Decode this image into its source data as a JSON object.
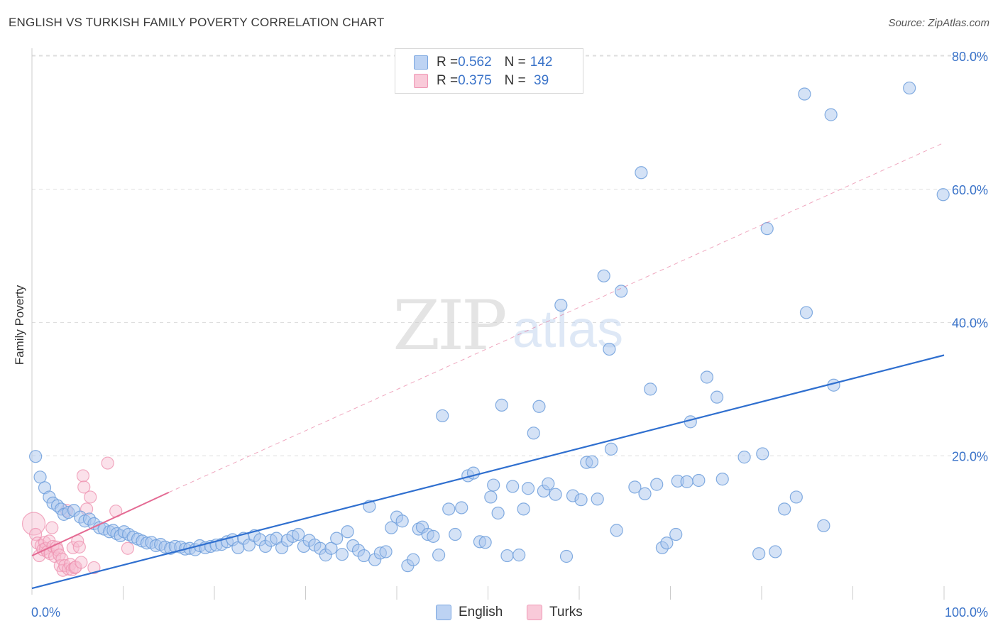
{
  "header": {
    "title": "ENGLISH VS TURKISH FAMILY POVERTY CORRELATION CHART",
    "source": "Source: ZipAtlas.com"
  },
  "watermark": {
    "zip": "ZIP",
    "atlas": "atlas"
  },
  "legend_top": {
    "rows": [
      {
        "r_label": "R = ",
        "r_value": "0.562",
        "n_label": "N = ",
        "n_value": "142"
      },
      {
        "r_label": "R = ",
        "r_value": "0.375",
        "n_label": "N = ",
        "n_value": " 39"
      }
    ]
  },
  "legend_bottom": {
    "items": [
      {
        "label": "English"
      },
      {
        "label": "Turks"
      }
    ]
  },
  "colors": {
    "english_fill": "#a9c6ee",
    "english_stroke": "#6f9fdc",
    "english_line": "#2f6fcf",
    "turks_fill": "#f7bdd0",
    "turks_stroke": "#ee8fae",
    "turks_line": "#e46a93",
    "grid": "#dedede",
    "tick_label": "#3a73c9"
  },
  "chart_data": {
    "type": "scatter",
    "title": "ENGLISH VS TURKISH FAMILY POVERTY CORRELATION CHART",
    "xlabel": "",
    "ylabel": "Family Poverty",
    "xlim": [
      0,
      100
    ],
    "ylim": [
      0,
      80
    ],
    "x_tick_labels": [
      "0.0%",
      "100.0%"
    ],
    "y_ticks": [
      20,
      40,
      60,
      80
    ],
    "y_tick_labels": [
      "20.0%",
      "40.0%",
      "60.0%",
      "80.0%"
    ],
    "grid": true,
    "legend_position": "top-center",
    "series": [
      {
        "name": "English",
        "r": 0.562,
        "n": 142,
        "trendline": {
          "x": [
            0,
            100
          ],
          "y": [
            0.1,
            35.1
          ],
          "style": "solid"
        },
        "points": [
          [
            0.4,
            19.9
          ],
          [
            0.9,
            16.8
          ],
          [
            1.4,
            15.2
          ],
          [
            1.9,
            13.8
          ],
          [
            2.3,
            12.9
          ],
          [
            2.8,
            12.5
          ],
          [
            3.2,
            12.0
          ],
          [
            3.5,
            11.2
          ],
          [
            4.0,
            11.5
          ],
          [
            4.6,
            11.8
          ],
          [
            5.3,
            10.8
          ],
          [
            5.8,
            10.2
          ],
          [
            6.3,
            10.5
          ],
          [
            6.8,
            9.8
          ],
          [
            7.4,
            9.2
          ],
          [
            7.9,
            9.0
          ],
          [
            8.5,
            8.6
          ],
          [
            8.9,
            8.8
          ],
          [
            9.3,
            8.3
          ],
          [
            9.7,
            8.0
          ],
          [
            10.1,
            8.6
          ],
          [
            10.6,
            8.2
          ],
          [
            11.1,
            7.8
          ],
          [
            11.6,
            7.5
          ],
          [
            12.1,
            7.2
          ],
          [
            12.6,
            6.9
          ],
          [
            13.1,
            7.0
          ],
          [
            13.6,
            6.5
          ],
          [
            14.1,
            6.7
          ],
          [
            14.6,
            6.3
          ],
          [
            15.2,
            6.1
          ],
          [
            15.7,
            6.4
          ],
          [
            16.3,
            6.3
          ],
          [
            16.8,
            6.0
          ],
          [
            17.3,
            6.1
          ],
          [
            17.9,
            5.9
          ],
          [
            18.4,
            6.5
          ],
          [
            19.0,
            6.2
          ],
          [
            19.6,
            6.4
          ],
          [
            20.2,
            6.6
          ],
          [
            20.8,
            6.7
          ],
          [
            21.4,
            7.1
          ],
          [
            22.0,
            7.4
          ],
          [
            22.6,
            6.2
          ],
          [
            23.2,
            7.6
          ],
          [
            23.8,
            6.6
          ],
          [
            24.4,
            8.0
          ],
          [
            25.0,
            7.4
          ],
          [
            25.6,
            6.4
          ],
          [
            26.2,
            7.3
          ],
          [
            26.8,
            7.6
          ],
          [
            27.4,
            6.2
          ],
          [
            28.0,
            7.3
          ],
          [
            28.6,
            7.9
          ],
          [
            29.2,
            8.2
          ],
          [
            29.8,
            6.4
          ],
          [
            30.4,
            7.3
          ],
          [
            31.0,
            6.6
          ],
          [
            31.6,
            6.1
          ],
          [
            32.2,
            5.1
          ],
          [
            32.8,
            6.1
          ],
          [
            33.4,
            7.6
          ],
          [
            34.0,
            5.2
          ],
          [
            34.6,
            8.6
          ],
          [
            35.2,
            6.5
          ],
          [
            35.8,
            5.8
          ],
          [
            36.4,
            5.0
          ],
          [
            37.0,
            12.4
          ],
          [
            37.6,
            4.4
          ],
          [
            38.2,
            5.4
          ],
          [
            38.8,
            5.6
          ],
          [
            39.4,
            9.2
          ],
          [
            40.0,
            10.8
          ],
          [
            40.6,
            10.2
          ],
          [
            41.2,
            3.5
          ],
          [
            41.8,
            4.4
          ],
          [
            42.4,
            9.0
          ],
          [
            42.8,
            9.3
          ],
          [
            43.4,
            8.2
          ],
          [
            44.0,
            7.9
          ],
          [
            44.6,
            5.1
          ],
          [
            45.0,
            26.0
          ],
          [
            45.7,
            12.0
          ],
          [
            46.4,
            8.2
          ],
          [
            47.1,
            12.2
          ],
          [
            47.8,
            17.0
          ],
          [
            48.4,
            17.4
          ],
          [
            49.1,
            7.1
          ],
          [
            49.7,
            7.0
          ],
          [
            50.3,
            13.8
          ],
          [
            50.6,
            15.6
          ],
          [
            51.1,
            11.4
          ],
          [
            51.5,
            27.6
          ],
          [
            52.1,
            5.0
          ],
          [
            52.7,
            15.4
          ],
          [
            53.4,
            5.1
          ],
          [
            53.9,
            12.0
          ],
          [
            54.4,
            15.1
          ],
          [
            55.0,
            23.4
          ],
          [
            55.6,
            27.4
          ],
          [
            56.1,
            14.7
          ],
          [
            56.6,
            15.8
          ],
          [
            57.4,
            14.2
          ],
          [
            58.0,
            42.6
          ],
          [
            58.6,
            4.9
          ],
          [
            59.3,
            14.0
          ],
          [
            60.2,
            13.4
          ],
          [
            60.8,
            19.0
          ],
          [
            61.4,
            19.1
          ],
          [
            62.0,
            13.5
          ],
          [
            62.7,
            47.0
          ],
          [
            63.3,
            36.0
          ],
          [
            63.5,
            21.0
          ],
          [
            64.1,
            8.8
          ],
          [
            64.6,
            44.7
          ],
          [
            66.1,
            15.3
          ],
          [
            66.8,
            62.5
          ],
          [
            67.2,
            14.3
          ],
          [
            67.8,
            30.0
          ],
          [
            68.5,
            15.7
          ],
          [
            69.1,
            6.2
          ],
          [
            69.6,
            6.9
          ],
          [
            70.6,
            8.2
          ],
          [
            70.8,
            16.2
          ],
          [
            71.8,
            16.1
          ],
          [
            72.2,
            25.1
          ],
          [
            73.1,
            16.3
          ],
          [
            74.0,
            31.8
          ],
          [
            75.1,
            28.8
          ],
          [
            75.7,
            16.5
          ],
          [
            78.1,
            19.8
          ],
          [
            79.7,
            5.3
          ],
          [
            80.1,
            20.3
          ],
          [
            80.6,
            54.1
          ],
          [
            81.5,
            5.6
          ],
          [
            82.5,
            12.0
          ],
          [
            83.8,
            13.8
          ],
          [
            84.7,
            74.3
          ],
          [
            84.9,
            41.5
          ],
          [
            86.8,
            9.5
          ],
          [
            87.6,
            71.2
          ],
          [
            87.9,
            30.6
          ],
          [
            96.2,
            75.2
          ],
          [
            99.9,
            59.2
          ]
        ]
      },
      {
        "name": "Turks",
        "r": 0.375,
        "n": 39,
        "trendline_solid": {
          "x": [
            0,
            15
          ],
          "y": [
            5.0,
            14.5
          ]
        },
        "trendline_dashed": {
          "x": [
            15,
            100
          ],
          "y": [
            14.5,
            67.0
          ]
        },
        "points": [
          [
            0.2,
            9.8
          ],
          [
            0.4,
            8.2
          ],
          [
            0.6,
            6.9
          ],
          [
            0.8,
            5.0
          ],
          [
            1.0,
            6.5
          ],
          [
            1.2,
            5.9
          ],
          [
            1.4,
            7.0
          ],
          [
            1.5,
            6.1
          ],
          [
            1.7,
            5.6
          ],
          [
            1.9,
            7.2
          ],
          [
            2.0,
            5.3
          ],
          [
            2.2,
            9.2
          ],
          [
            2.3,
            6.4
          ],
          [
            2.5,
            4.9
          ],
          [
            2.7,
            6.3
          ],
          [
            2.8,
            5.9
          ],
          [
            3.0,
            5.1
          ],
          [
            3.1,
            3.5
          ],
          [
            3.3,
            4.5
          ],
          [
            3.4,
            2.8
          ],
          [
            3.6,
            3.5
          ],
          [
            3.8,
            11.8
          ],
          [
            4.0,
            3.0
          ],
          [
            4.2,
            3.7
          ],
          [
            4.4,
            2.9
          ],
          [
            4.5,
            6.2
          ],
          [
            4.7,
            3.2
          ],
          [
            4.8,
            3.3
          ],
          [
            5.0,
            7.2
          ],
          [
            5.2,
            6.3
          ],
          [
            5.4,
            4.0
          ],
          [
            5.6,
            17.0
          ],
          [
            5.7,
            15.3
          ],
          [
            6.0,
            12.0
          ],
          [
            6.4,
            13.8
          ],
          [
            6.8,
            3.2
          ],
          [
            10.5,
            6.1
          ],
          [
            8.3,
            18.9
          ],
          [
            9.2,
            11.7
          ]
        ]
      }
    ]
  }
}
